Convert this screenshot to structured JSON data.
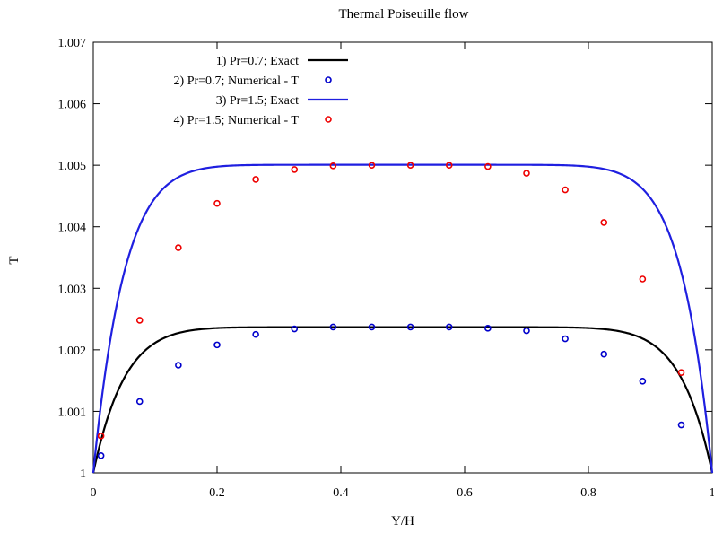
{
  "chart_data": {
    "type": "line",
    "title": "Thermal Poiseuille flow",
    "xlabel": "Y/H",
    "ylabel": "T",
    "xlim": [
      0,
      1
    ],
    "ylim": [
      1,
      1.007
    ],
    "x_ticks": [
      0,
      0.2,
      0.4,
      0.6,
      0.8,
      1
    ],
    "x_tick_labels": [
      "0",
      "0.2",
      "0.4",
      "0.6",
      "0.8",
      "1"
    ],
    "y_ticks": [
      1,
      1.001,
      1.002,
      1.003,
      1.004,
      1.005,
      1.006,
      1.007
    ],
    "y_tick_labels": [
      "1",
      "1.001",
      "1.002",
      "1.003",
      "1.004",
      "1.005",
      "1.006",
      "1.007"
    ],
    "grid": false,
    "legend_position": "top-left",
    "series": [
      {
        "name": "1) Pr=0.7; Exact",
        "kind": "line",
        "color": "#000000",
        "amplitude": 0.002368,
        "exponent": 10
      },
      {
        "name": "2) Pr=0.7; Numerical - T",
        "kind": "marker",
        "color": "#0000cc",
        "x": [
          0.0125,
          0.075,
          0.1375,
          0.2,
          0.2625,
          0.325,
          0.3875,
          0.45,
          0.5125,
          0.575,
          0.6375,
          0.7,
          0.7625,
          0.825,
          0.8875,
          0.95
        ],
        "y": [
          1.00028,
          1.00116,
          1.00175,
          1.00208,
          1.00225,
          1.00234,
          1.00237,
          1.00237,
          1.00237,
          1.00237,
          1.00235,
          1.00231,
          1.00218,
          1.00193,
          1.00149,
          1.00078
        ]
      },
      {
        "name": "3) Pr=1.5; Exact",
        "kind": "line",
        "color": "#1f1fe0",
        "amplitude": 0.005007,
        "exponent": 10
      },
      {
        "name": "4) Pr=1.5; Numerical - T",
        "kind": "marker",
        "color": "#ee0000",
        "x": [
          0.0125,
          0.075,
          0.1375,
          0.2,
          0.2625,
          0.325,
          0.3875,
          0.45,
          0.5125,
          0.575,
          0.6375,
          0.7,
          0.7625,
          0.825,
          0.8875,
          0.95
        ],
        "y": [
          1.0006,
          1.00248,
          1.00366,
          1.00438,
          1.00477,
          1.00493,
          1.00499,
          1.005,
          1.005,
          1.005,
          1.00498,
          1.00487,
          1.0046,
          1.00407,
          1.00315,
          1.00163
        ]
      }
    ]
  }
}
